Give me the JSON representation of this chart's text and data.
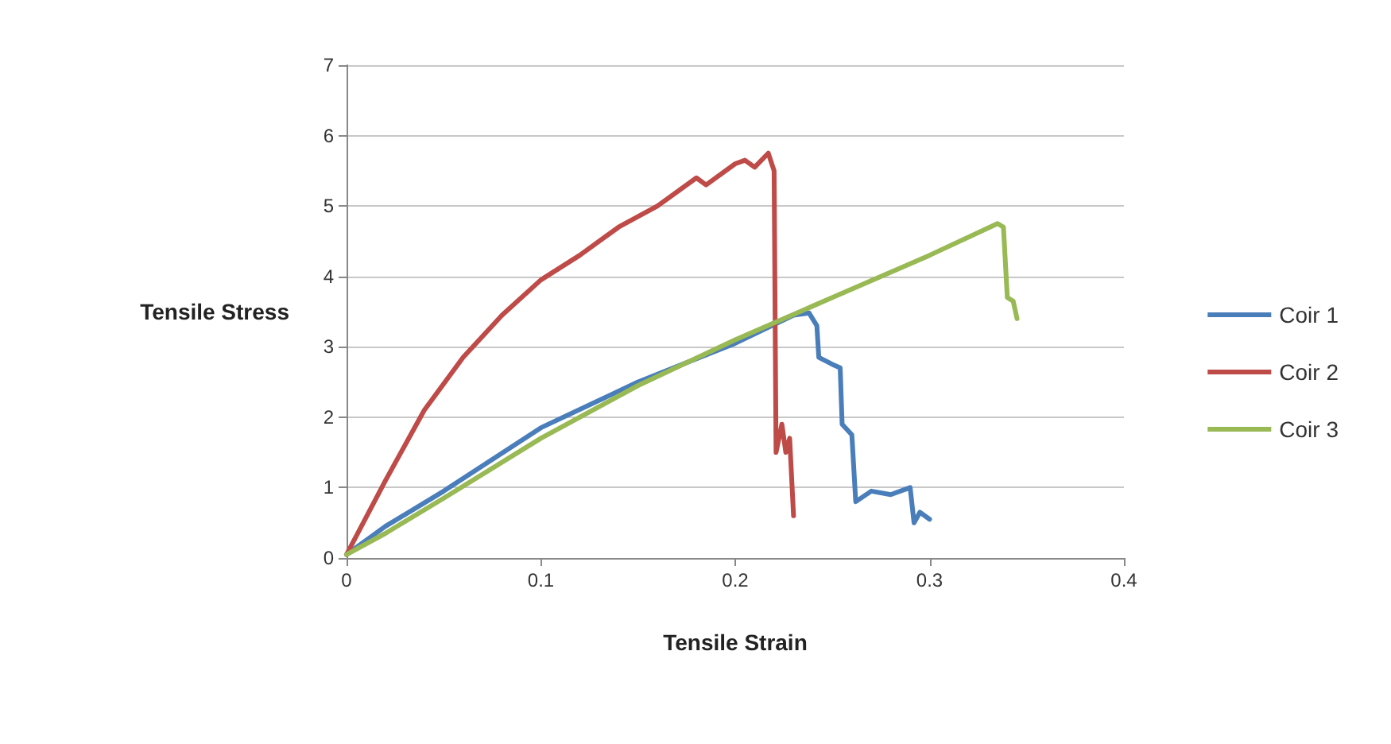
{
  "chart_data": {
    "type": "line",
    "xlabel": "Tensile Strain",
    "ylabel": "Tensile Stress",
    "xlim": [
      0,
      0.4
    ],
    "xticks": [
      0,
      0.1,
      0.2,
      0.3,
      0.4
    ],
    "ylim": [
      0,
      7
    ],
    "yticks": [
      0,
      1,
      2,
      3,
      4,
      5,
      6,
      7
    ],
    "grid": "y",
    "legend": "right",
    "marker": "none",
    "line_style": "solid",
    "series": [
      {
        "name": "Coir 1",
        "color": "#4a7ebb",
        "x": [
          0,
          0.02,
          0.05,
          0.1,
          0.15,
          0.2,
          0.23,
          0.238,
          0.242,
          0.243,
          0.25,
          0.254,
          0.255,
          0.26,
          0.262,
          0.27,
          0.28,
          0.29,
          0.292,
          0.295,
          0.3
        ],
        "values": [
          0.05,
          0.45,
          0.95,
          1.85,
          2.5,
          3.05,
          3.45,
          3.48,
          3.3,
          2.85,
          2.75,
          2.7,
          1.9,
          1.75,
          0.8,
          0.95,
          0.9,
          1.0,
          0.5,
          0.65,
          0.55
        ]
      },
      {
        "name": "Coir 2",
        "color": "#be4b48",
        "x": [
          0,
          0.02,
          0.04,
          0.06,
          0.08,
          0.1,
          0.12,
          0.14,
          0.16,
          0.18,
          0.185,
          0.2,
          0.205,
          0.21,
          0.217,
          0.22,
          0.221,
          0.224,
          0.226,
          0.228,
          0.23
        ],
        "values": [
          0.05,
          1.1,
          2.1,
          2.85,
          3.45,
          3.95,
          4.3,
          4.7,
          5.0,
          5.4,
          5.3,
          5.6,
          5.65,
          5.55,
          5.75,
          5.5,
          1.5,
          1.9,
          1.5,
          1.7,
          0.6
        ]
      },
      {
        "name": "Coir 3",
        "color": "#98b954",
        "x": [
          0,
          0.02,
          0.05,
          0.1,
          0.15,
          0.2,
          0.25,
          0.3,
          0.335,
          0.338,
          0.34,
          0.343,
          0.345
        ],
        "values": [
          0.05,
          0.35,
          0.85,
          1.7,
          2.45,
          3.1,
          3.7,
          4.3,
          4.75,
          4.7,
          3.7,
          3.65,
          3.4
        ]
      }
    ]
  }
}
